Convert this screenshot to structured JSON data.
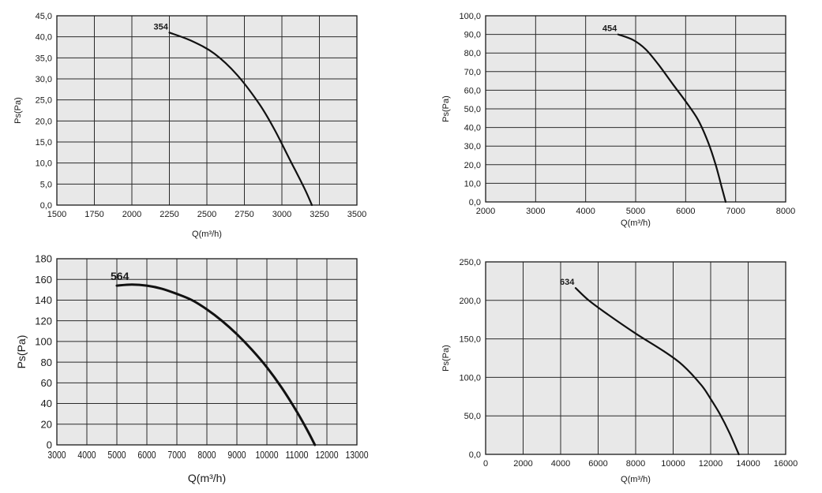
{
  "chart_data": [
    {
      "type": "line",
      "xlabel": "Q(m³/h)",
      "ylabel": "Ps(Pa)",
      "xlim": [
        1500,
        3500
      ],
      "ylim": [
        0,
        45
      ],
      "xticks": [
        1500,
        1750,
        2000,
        2250,
        2500,
        2750,
        3000,
        3250,
        3500
      ],
      "xtick_labels": [
        "1500",
        "1750",
        "2000",
        "2250",
        "2500",
        "2750",
        "3000",
        "3250",
        "3500"
      ],
      "yticks": [
        0,
        5,
        10,
        15,
        20,
        25,
        30,
        35,
        40,
        45
      ],
      "ytick_labels": [
        "0,0",
        "5,0",
        "10,0",
        "15,0",
        "20,0",
        "25,0",
        "30,0",
        "35,0",
        "40,0",
        "45,0"
      ],
      "grid": true,
      "series": [
        {
          "name": "354",
          "x": [
            2250,
            2400,
            2550,
            2700,
            2850,
            2950,
            3050,
            3150,
            3200
          ],
          "y": [
            41,
            39,
            36,
            31,
            24,
            18,
            11,
            4,
            0
          ]
        }
      ]
    },
    {
      "type": "line",
      "xlabel": "Q(m³/h)",
      "ylabel": "Ps(Pa)",
      "xlim": [
        2000,
        8000
      ],
      "ylim": [
        0,
        100
      ],
      "xticks": [
        2000,
        3000,
        4000,
        5000,
        6000,
        7000,
        8000
      ],
      "xtick_labels": [
        "2000",
        "3000",
        "4000",
        "5000",
        "6000",
        "7000",
        "8000"
      ],
      "yticks": [
        0,
        10,
        20,
        30,
        40,
        50,
        60,
        70,
        80,
        90,
        100
      ],
      "ytick_labels": [
        "0,0",
        "10,0",
        "20,0",
        "30,0",
        "40,0",
        "50,0",
        "60,0",
        "70,0",
        "80,0",
        "90,0",
        "100,0"
      ],
      "grid": true,
      "series": [
        {
          "name": "454",
          "x": [
            4650,
            4950,
            5200,
            5450,
            5750,
            6000,
            6250,
            6450,
            6600,
            6720,
            6800
          ],
          "y": [
            90,
            87,
            82,
            74,
            63,
            54,
            44,
            32,
            20,
            8,
            0
          ]
        }
      ]
    },
    {
      "type": "line",
      "xlabel": "Q(m³/h)",
      "ylabel": "Ps(Pa)",
      "xlim": [
        3000,
        13000
      ],
      "ylim": [
        0,
        180
      ],
      "xticks": [
        3000,
        4000,
        5000,
        6000,
        7000,
        8000,
        9000,
        10000,
        11000,
        12000,
        13000
      ],
      "xtick_labels": [
        "3000",
        "4000",
        "5000",
        "6000",
        "7000",
        "8000",
        "9000",
        "10000",
        "11000",
        "12000",
        "13000"
      ],
      "yticks": [
        0,
        20,
        40,
        60,
        80,
        100,
        120,
        140,
        160,
        180
      ],
      "ytick_labels": [
        "0",
        "20",
        "40",
        "60",
        "80",
        "100",
        "120",
        "140",
        "160",
        "180"
      ],
      "grid": true,
      "series": [
        {
          "name": "564",
          "x": [
            5000,
            5500,
            6000,
            6500,
            7000,
            7500,
            8000,
            8500,
            9000,
            9500,
            10000,
            10500,
            11000,
            11350,
            11600
          ],
          "y": [
            154,
            155,
            154,
            151,
            146,
            140,
            131,
            120,
            107,
            92,
            75,
            55,
            32,
            14,
            0
          ]
        }
      ]
    },
    {
      "type": "line",
      "xlabel": "Q(m³/h)",
      "ylabel": "Ps(Pa)",
      "xlim": [
        0,
        16000
      ],
      "ylim": [
        0,
        250
      ],
      "xticks": [
        0,
        2000,
        4000,
        6000,
        8000,
        10000,
        12000,
        14000,
        16000
      ],
      "xtick_labels": [
        "0",
        "2000",
        "4000",
        "6000",
        "8000",
        "10000",
        "12000",
        "14000",
        "16000"
      ],
      "yticks": [
        0,
        50,
        100,
        150,
        200,
        250
      ],
      "ytick_labels": [
        "0,0",
        "50,0",
        "100,0",
        "150,0",
        "200,0",
        "250,0"
      ],
      "grid": true,
      "series": [
        {
          "name": "634",
          "x": [
            4800,
            5500,
            6500,
            8000,
            9500,
            10500,
            11500,
            12000,
            12500,
            13000,
            13500
          ],
          "y": [
            216,
            200,
            182,
            157,
            134,
            116,
            90,
            72,
            52,
            28,
            0
          ]
        }
      ]
    }
  ]
}
